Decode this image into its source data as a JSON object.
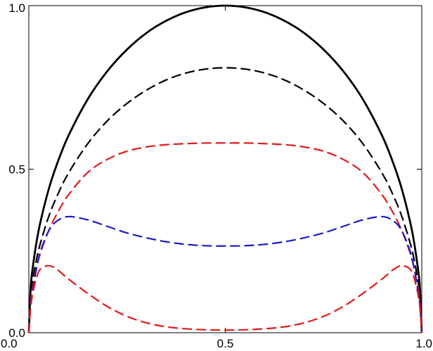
{
  "chart_data": {
    "type": "line",
    "title": "",
    "xlabel": "",
    "ylabel": "",
    "xlim": [
      0.0,
      1.0
    ],
    "ylim": [
      0.0,
      1.0
    ],
    "grid": false,
    "legend": "none",
    "x_ticks": [
      {
        "value": 0.0,
        "label": "0.0"
      },
      {
        "value": 0.5,
        "label": "0.5"
      },
      {
        "value": 1.0,
        "label": "1.0"
      }
    ],
    "y_ticks": [
      {
        "value": 0.0,
        "label": "0.0"
      },
      {
        "value": 0.5,
        "label": "0.5"
      },
      {
        "value": 1.0,
        "label": "1.0"
      }
    ],
    "x": [
      0,
      0.005,
      0.01,
      0.02,
      0.03,
      0.05,
      0.07,
      0.1,
      0.15,
      0.2,
      0.25,
      0.3,
      0.35,
      0.4,
      0.45,
      0.5,
      0.55,
      0.6,
      0.65,
      0.7,
      0.75,
      0.8,
      0.85,
      0.9,
      0.93,
      0.95,
      0.97,
      0.98,
      0.99,
      0.995,
      1
    ],
    "series": [
      {
        "color": "#000000",
        "dash": "solid",
        "values": [
          0,
          0.141,
          0.199,
          0.28,
          0.341,
          0.436,
          0.51,
          0.6,
          0.714,
          0.8,
          0.866,
          0.917,
          0.954,
          0.98,
          0.995,
          1.0,
          0.995,
          0.98,
          0.954,
          0.917,
          0.866,
          0.8,
          0.714,
          0.6,
          0.51,
          0.436,
          0.341,
          0.28,
          0.199,
          0.141,
          0
        ]
      },
      {
        "color": "#000000",
        "dash": "dashed",
        "values": [
          0,
          0.114,
          0.161,
          0.227,
          0.276,
          0.353,
          0.413,
          0.486,
          0.578,
          0.648,
          0.701,
          0.742,
          0.773,
          0.794,
          0.806,
          0.81,
          0.806,
          0.794,
          0.773,
          0.742,
          0.701,
          0.648,
          0.578,
          0.486,
          0.413,
          0.353,
          0.276,
          0.227,
          0.161,
          0.114,
          0
        ]
      },
      {
        "color": "#e31a1c",
        "dash": "dashed",
        "values": [
          0,
          0.1,
          0.14,
          0.2,
          0.245,
          0.31,
          0.36,
          0.42,
          0.49,
          0.53,
          0.555,
          0.568,
          0.575,
          0.578,
          0.58,
          0.58,
          0.58,
          0.578,
          0.575,
          0.568,
          0.555,
          0.53,
          0.49,
          0.42,
          0.36,
          0.31,
          0.245,
          0.2,
          0.14,
          0.1,
          0
        ]
      },
      {
        "color": "#1a1acc",
        "dash": "dashed",
        "values": [
          0,
          0.09,
          0.13,
          0.2,
          0.25,
          0.31,
          0.34,
          0.355,
          0.345,
          0.325,
          0.305,
          0.29,
          0.278,
          0.27,
          0.266,
          0.265,
          0.266,
          0.27,
          0.278,
          0.29,
          0.305,
          0.325,
          0.345,
          0.355,
          0.34,
          0.31,
          0.25,
          0.2,
          0.13,
          0.09,
          0
        ]
      },
      {
        "color": "#e31a1c",
        "dash": "dashed",
        "values": [
          0,
          0.08,
          0.12,
          0.17,
          0.195,
          0.205,
          0.195,
          0.165,
          0.12,
          0.08,
          0.05,
          0.03,
          0.018,
          0.012,
          0.009,
          0.008,
          0.009,
          0.012,
          0.018,
          0.03,
          0.05,
          0.08,
          0.12,
          0.165,
          0.195,
          0.205,
          0.195,
          0.17,
          0.12,
          0.08,
          0
        ]
      }
    ]
  }
}
